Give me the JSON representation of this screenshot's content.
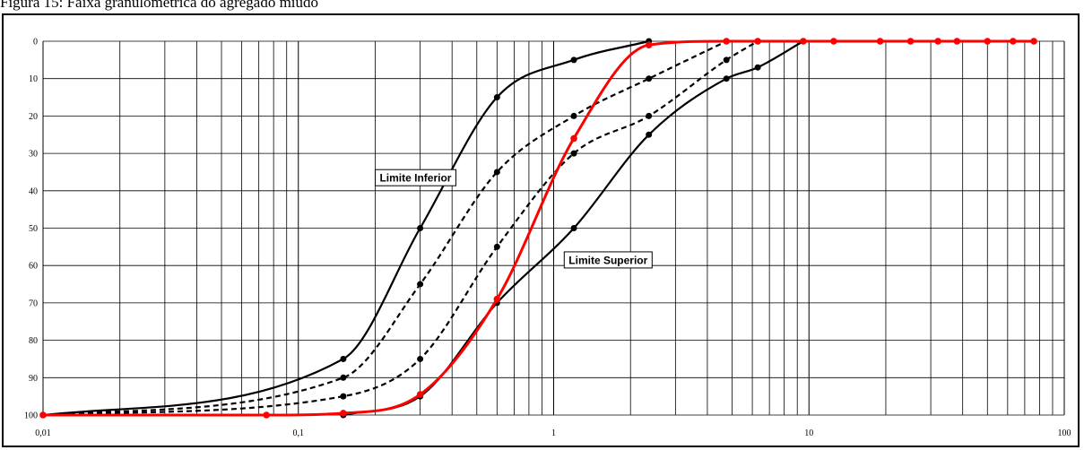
{
  "caption": "Figura 15: Faixa granulométrica do agregado miúdo",
  "chart_data": {
    "type": "line",
    "x_scale": "log",
    "xlim": [
      0.01,
      100
    ],
    "ylim": [
      0,
      100
    ],
    "y_inverted": true,
    "grid": true,
    "x_tick_labels": [
      "0,01",
      "0,1",
      "1",
      "10",
      "100"
    ],
    "y_tick_labels": [
      "0",
      "10",
      "20",
      "30",
      "40",
      "50",
      "60",
      "70",
      "80",
      "90",
      "100"
    ],
    "annotations": [
      {
        "text": "Limite Inferior",
        "x": 0.2,
        "y": 36.5
      },
      {
        "text": "Limite Superior",
        "x": 1.1,
        "y": 58.5
      }
    ],
    "series": [
      {
        "color": "#000000",
        "dash": false,
        "width": 2.2,
        "x": [
          0.01,
          0.15,
          0.3,
          0.6,
          1.2,
          2.36
        ],
        "y": [
          100,
          85,
          50,
          15,
          5,
          0
        ]
      },
      {
        "color": "#000000",
        "dash": true,
        "width": 2.2,
        "x": [
          0.01,
          0.15,
          0.3,
          0.6,
          1.2,
          2.36,
          4.75
        ],
        "y": [
          100,
          90,
          65,
          35,
          20,
          10,
          0
        ]
      },
      {
        "color": "#000000",
        "dash": true,
        "width": 2.2,
        "x": [
          0.01,
          0.15,
          0.3,
          0.6,
          1.2,
          2.36,
          4.75,
          6.3
        ],
        "y": [
          100,
          95,
          85,
          55,
          30,
          20,
          5,
          0
        ]
      },
      {
        "color": "#000000",
        "dash": false,
        "width": 2.2,
        "x": [
          0.15,
          0.3,
          0.6,
          1.2,
          2.36,
          4.75,
          6.3,
          9.5
        ],
        "y": [
          100,
          95,
          70,
          50,
          25,
          10,
          7,
          0
        ]
      },
      {
        "color": "#ff0000",
        "dash": false,
        "width": 3,
        "x": [
          0.01,
          0.075,
          0.15,
          0.3,
          0.6,
          1.2,
          2.36,
          4.75,
          6.3,
          9.5,
          12.5,
          19,
          25,
          32,
          38,
          50,
          63,
          76
        ],
        "y": [
          100,
          100,
          99.5,
          94.5,
          69,
          26,
          1,
          0,
          0,
          0,
          0,
          0,
          0,
          0,
          0,
          0,
          0,
          0
        ]
      }
    ]
  }
}
